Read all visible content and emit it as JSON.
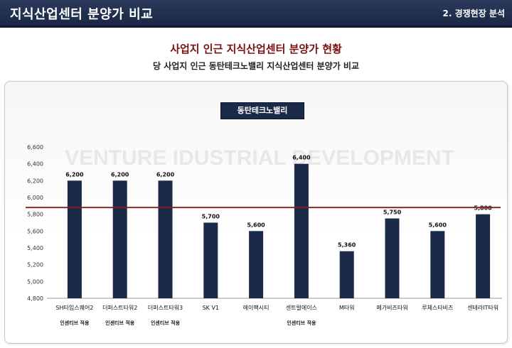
{
  "header": {
    "title": "지식산업센터 분양가 비교",
    "section": "2. 경쟁현장 분석"
  },
  "main_title": "사업지 인근 지식산업센터 분양가 현황",
  "sub_title": "당 사업지 인근 동탄테크노밸리 지식산업센터 분양가 비교",
  "watermark": "VENTURE IDUSTRIAL DEVELOPMENT",
  "colors": {
    "bar": "#1c2a4a",
    "reference_line": "#8b1a1a",
    "header_bg": "#1a2744",
    "title_red": "#7a1010"
  },
  "chart_data": {
    "type": "bar",
    "legend": "동탄테크노밸리",
    "categories": [
      "SH타임스퀘어2",
      "더퍼스트타워2",
      "더퍼스트타워3",
      "SK V1",
      "에이팩시티",
      "센트럴에이스",
      "M타워",
      "메가비즈타워",
      "루체스타비즈",
      "센테라IT타워"
    ],
    "values": [
      6200,
      6200,
      6200,
      5700,
      5600,
      6400,
      5360,
      5750,
      5600,
      5800
    ],
    "value_labels": [
      "6,200",
      "6,200",
      "6,200",
      "5,700",
      "5,600",
      "6,400",
      "5,360",
      "5,750",
      "5,600",
      "5,800"
    ],
    "notes": [
      "인센티브 적용",
      "인센티브 적용",
      "인센티브 적용",
      "",
      "",
      "인센티브 적용",
      "",
      "",
      "",
      ""
    ],
    "y_ticks": [
      4800,
      5000,
      5200,
      5400,
      5600,
      5800,
      6000,
      6200,
      6400,
      6600
    ],
    "y_tick_labels": [
      "4,800",
      "5,000",
      "5,200",
      "5,400",
      "5,600",
      "5,800",
      "6,000",
      "6,200",
      "6,400",
      "6,600"
    ],
    "ylim": [
      4800,
      6600
    ],
    "reference_value": 5880,
    "grid": false
  }
}
